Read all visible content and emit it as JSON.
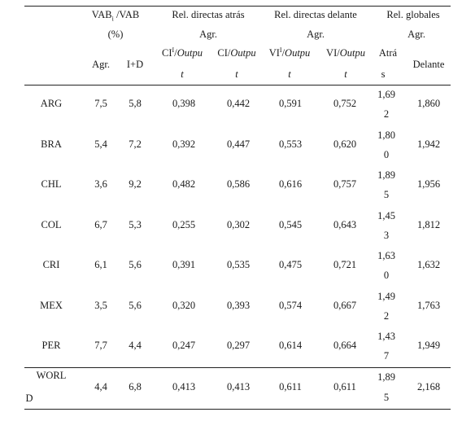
{
  "header": {
    "share_title": "VAB",
    "share_sub": "i",
    "share_title2": " /VAB",
    "share_unit": "(%)",
    "share_cols": [
      "Agr.",
      "I+D"
    ],
    "back_title": "Rel. directas atrás",
    "back_sub": "Agr.",
    "back_col1_a": "CI",
    "back_col1_sup": "I",
    "back_col1_b": "/",
    "back_col1_c": "Outpu",
    "back_col1_d": "t",
    "back_col2_a": "CI/",
    "back_col2_c": "Outpu",
    "back_col2_d": "t",
    "fwd_title": "Rel. directas delante",
    "fwd_sub": "Agr.",
    "fwd_col1_a": "VI",
    "fwd_col1_sup": "I",
    "fwd_col1_b": "/",
    "fwd_col1_c": "Outpu",
    "fwd_col1_d": "t",
    "fwd_col2_a": "VI/",
    "fwd_col2_c": "Outpu",
    "fwd_col2_d": "t",
    "glob_title": "Rel. globales",
    "glob_sub": "Agr.",
    "glob_col1_a": "Atrá",
    "glob_col1_b": "s",
    "glob_col2": "Delante"
  },
  "rows": [
    {
      "country": "ARG",
      "agr": "7,5",
      "id": "5,8",
      "ci_i": "0,398",
      "ci": "0,442",
      "vi_i": "0,591",
      "vi": "0,752",
      "atras_a": "1,69",
      "atras_b": "2",
      "delante": "1,860"
    },
    {
      "country": "BRA",
      "agr": "5,4",
      "id": "7,2",
      "ci_i": "0,392",
      "ci": "0,447",
      "vi_i": "0,553",
      "vi": "0,620",
      "atras_a": "1,80",
      "atras_b": "0",
      "delante": "1,942"
    },
    {
      "country": "CHL",
      "agr": "3,6",
      "id": "9,2",
      "ci_i": "0,482",
      "ci": "0,586",
      "vi_i": "0,616",
      "vi": "0,757",
      "atras_a": "1,89",
      "atras_b": "5",
      "delante": "1,956"
    },
    {
      "country": "COL",
      "agr": "6,7",
      "id": "5,3",
      "ci_i": "0,255",
      "ci": "0,302",
      "vi_i": "0,545",
      "vi": "0,643",
      "atras_a": "1,45",
      "atras_b": "3",
      "delante": "1,812"
    },
    {
      "country": "CRI",
      "agr": "6,1",
      "id": "5,6",
      "ci_i": "0,391",
      "ci": "0,535",
      "vi_i": "0,475",
      "vi": "0,721",
      "atras_a": "1,63",
      "atras_b": "0",
      "delante": "1,632"
    },
    {
      "country": "MEX",
      "agr": "3,5",
      "id": "5,6",
      "ci_i": "0,320",
      "ci": "0,393",
      "vi_i": "0,574",
      "vi": "0,667",
      "atras_a": "1,49",
      "atras_b": "2",
      "delante": "1,763"
    },
    {
      "country": "PER",
      "agr": "7,7",
      "id": "4,4",
      "ci_i": "0,247",
      "ci": "0,297",
      "vi_i": "0,614",
      "vi": "0,664",
      "atras_a": "1,43",
      "atras_b": "7",
      "delante": "1,949"
    }
  ],
  "world": {
    "country_a": "WORL",
    "country_b": "D",
    "agr": "4,4",
    "id": "6,8",
    "ci_i": "0,413",
    "ci": "0,413",
    "vi_i": "0,611",
    "vi": "0,611",
    "atras_a": "1,89",
    "atras_b": "5",
    "delante": "2,168"
  }
}
